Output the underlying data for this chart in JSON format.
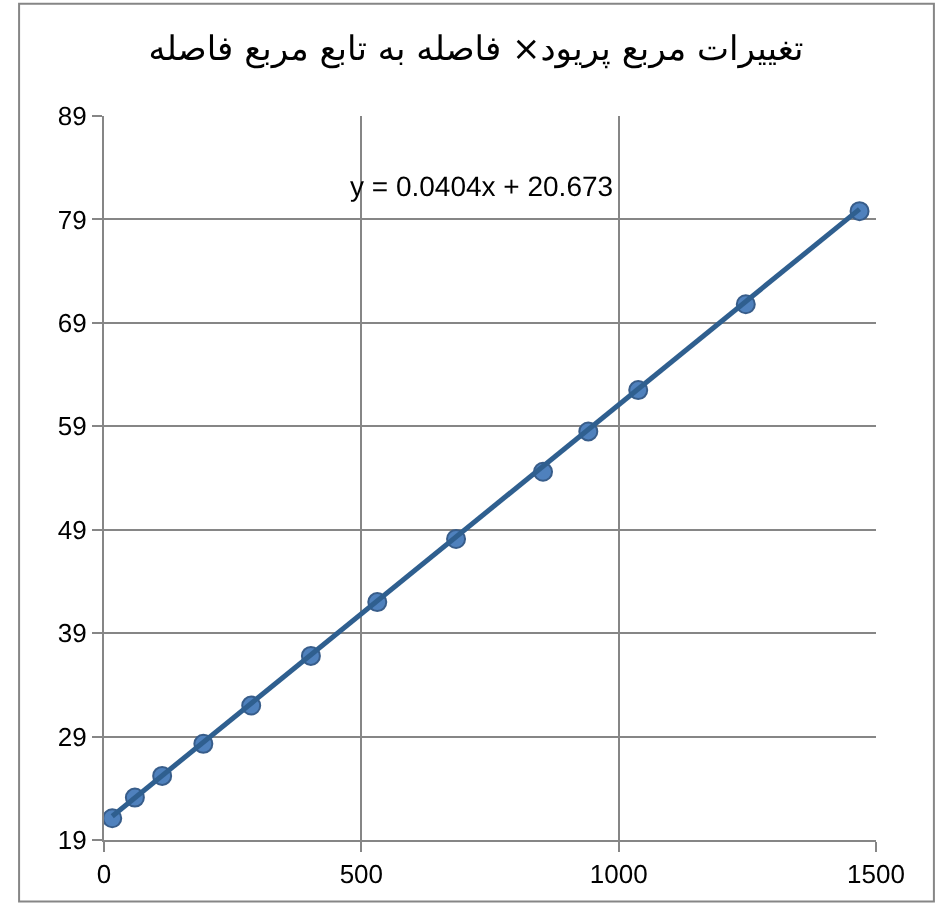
{
  "chart_data": {
    "type": "scatter",
    "title": "تغییرات مربع پریود× فاصله به تابع مربع فاصله",
    "annotations": [
      "y = 0.0404x + 20.673"
    ],
    "series": [
      {
        "color": "#4f81bd",
        "marker": "circle",
        "x": [
          16,
          60,
          113,
          193,
          286,
          402,
          531,
          684,
          853,
          941,
          1038,
          1247,
          1468
        ],
        "values": [
          21.1,
          23.1,
          25.2,
          28.3,
          32.0,
          36.8,
          42.0,
          48.1,
          54.6,
          58.5,
          62.5,
          70.8,
          79.8
        ]
      },
      {
        "type": "line",
        "color": "#2f5f8f",
        "x": [
          16,
          1468
        ],
        "values": [
          21.3,
          80.0
        ]
      }
    ],
    "xlim": [
      0,
      1500
    ],
    "xticks": [
      0,
      500,
      1000,
      1500
    ],
    "ylim": [
      19,
      89
    ],
    "yticks": [
      19,
      29,
      39,
      49,
      59,
      69,
      79,
      89
    ],
    "grid": true,
    "legend": false
  }
}
